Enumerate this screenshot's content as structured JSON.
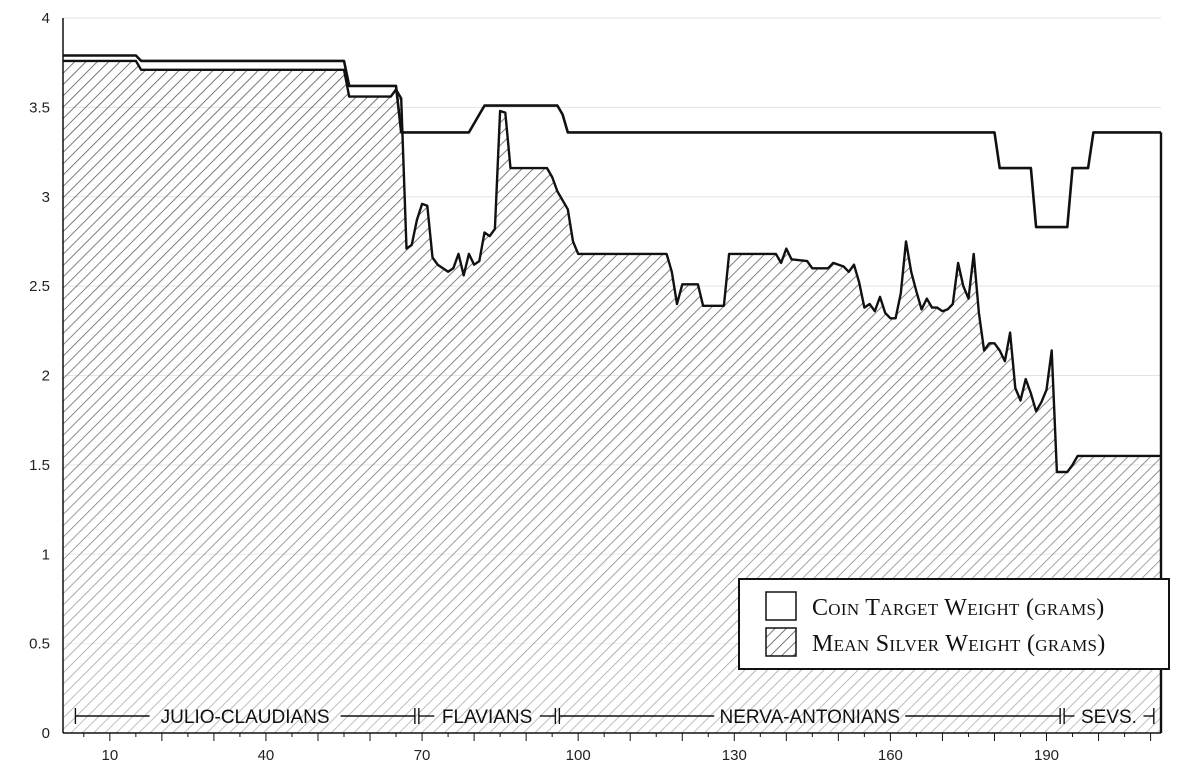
{
  "chart_data": {
    "type": "area",
    "title": "",
    "xlabel": "",
    "ylabel": "",
    "xlim": [
      1,
      212
    ],
    "ylim": [
      0,
      4
    ],
    "grid": "horizontal",
    "x_ticks": [
      "10",
      "40",
      "70",
      "100",
      "130",
      "160",
      "190"
    ],
    "y_ticks": [
      "0",
      "0.5",
      "1",
      "1.5",
      "2",
      "2.5",
      "3",
      "3.5",
      "4"
    ],
    "legend": {
      "position": "bottom-right",
      "entries": [
        {
          "label": "Coin Target Weight (grams)",
          "swatch": "plain"
        },
        {
          "label": "Mean Silver Weight (grams)",
          "swatch": "hatched"
        }
      ]
    },
    "eras": [
      {
        "label": "JULIO-CLAUDIANS",
        "start": 3,
        "end": 69
      },
      {
        "label": "FLAVIANS",
        "start": 69,
        "end": 96
      },
      {
        "label": "NERVA-ANTONIANS",
        "start": 96,
        "end": 193
      },
      {
        "label": "SEVS.",
        "start": 193,
        "end": 211
      }
    ],
    "series": [
      {
        "name": "Coin Target Weight (grams)",
        "x": [
          1,
          15,
          16,
          55,
          56,
          65,
          66,
          79,
          81,
          82,
          96,
          97,
          98,
          180,
          181,
          187,
          188,
          194,
          195,
          198,
          199,
          212
        ],
        "y": [
          3.79,
          3.79,
          3.76,
          3.76,
          3.62,
          3.62,
          3.36,
          3.36,
          3.46,
          3.51,
          3.51,
          3.46,
          3.36,
          3.36,
          3.16,
          3.16,
          2.83,
          2.83,
          3.16,
          3.16,
          3.36,
          3.36
        ]
      },
      {
        "name": "Mean Silver Weight (grams)",
        "x": [
          1,
          15,
          16,
          55,
          56,
          64,
          65,
          66,
          67,
          68,
          69,
          70,
          71,
          72,
          73,
          75,
          76,
          77,
          78,
          79,
          80,
          81,
          82,
          83,
          84,
          85,
          86,
          87,
          94,
          95,
          96,
          97,
          98,
          99,
          100,
          101,
          102,
          117,
          118,
          119,
          120,
          123,
          124,
          128,
          129,
          138,
          139,
          140,
          141,
          144,
          145,
          148,
          149,
          151,
          152,
          153,
          154,
          155,
          156,
          157,
          158,
          159,
          160,
          161,
          162,
          163,
          164,
          165,
          166,
          167,
          168,
          169,
          170,
          171,
          172,
          173,
          174,
          175,
          176,
          177,
          178,
          179,
          180,
          181,
          182,
          183,
          184,
          185,
          186,
          187,
          188,
          189,
          190,
          191,
          192,
          193,
          194,
          195,
          196,
          197,
          198,
          199,
          212
        ],
        "y": [
          3.76,
          3.76,
          3.71,
          3.71,
          3.56,
          3.56,
          3.6,
          3.55,
          2.71,
          2.73,
          2.87,
          2.96,
          2.95,
          2.66,
          2.62,
          2.58,
          2.6,
          2.68,
          2.56,
          2.68,
          2.62,
          2.64,
          2.8,
          2.78,
          2.82,
          3.48,
          3.47,
          3.16,
          3.16,
          3.11,
          3.03,
          2.98,
          2.93,
          2.75,
          2.68,
          2.68,
          2.68,
          2.68,
          2.58,
          2.4,
          2.51,
          2.51,
          2.39,
          2.39,
          2.68,
          2.68,
          2.63,
          2.71,
          2.65,
          2.64,
          2.6,
          2.6,
          2.63,
          2.61,
          2.58,
          2.62,
          2.52,
          2.38,
          2.4,
          2.36,
          2.44,
          2.35,
          2.32,
          2.32,
          2.46,
          2.75,
          2.58,
          2.47,
          2.37,
          2.43,
          2.38,
          2.38,
          2.36,
          2.37,
          2.4,
          2.63,
          2.5,
          2.43,
          2.68,
          2.35,
          2.14,
          2.18,
          2.18,
          2.14,
          2.08,
          2.24,
          1.93,
          1.86,
          1.98,
          1.9,
          1.8,
          1.85,
          1.92,
          2.14,
          1.46,
          1.46,
          1.46,
          1.5,
          1.55,
          1.55,
          1.55,
          1.55,
          1.55
        ]
      }
    ]
  }
}
